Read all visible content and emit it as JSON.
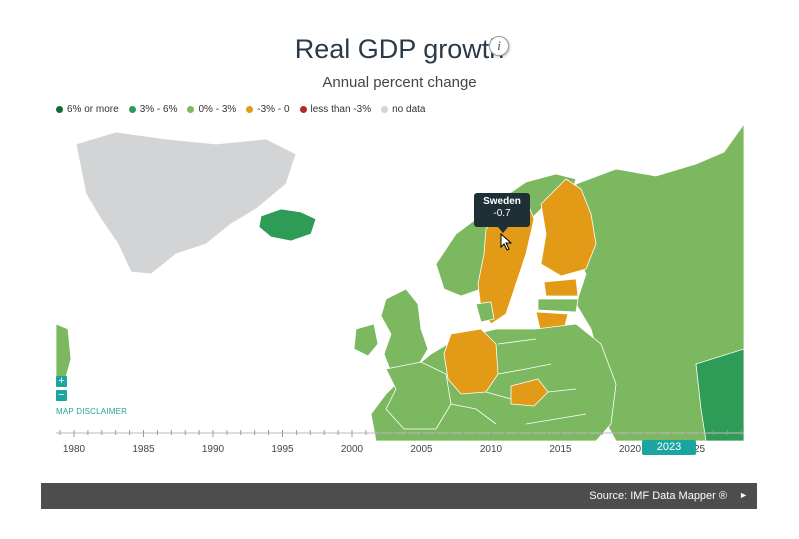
{
  "header": {
    "title": "Real GDP growth",
    "info_icon_label": "i",
    "subtitle": "Annual percent change"
  },
  "legend": [
    {
      "label": "6% or more",
      "color": "#0f6b3a"
    },
    {
      "label": "3% - 6%",
      "color": "#2e9b57"
    },
    {
      "label": "0% - 3%",
      "color": "#7cb85f"
    },
    {
      "label": "-3% - 0",
      "color": "#e39a17"
    },
    {
      "label": "less than -3%",
      "color": "#b02b2b"
    },
    {
      "label": "no data",
      "color": "#d3d4d6"
    }
  ],
  "map": {
    "zoom_in_label": "+",
    "zoom_out_label": "−",
    "disclaimer": "MAP DISCLAIMER"
  },
  "tooltip": {
    "country": "Sweden",
    "value": "-0.7"
  },
  "timeline": {
    "years": [
      "1980",
      "1985",
      "1990",
      "1995",
      "2000",
      "2005",
      "2010",
      "2015",
      "2020",
      "25"
    ],
    "selected_year": "2023"
  },
  "footer": {
    "source": "Source: IMF Data Mapper ®",
    "arrow": "►"
  }
}
